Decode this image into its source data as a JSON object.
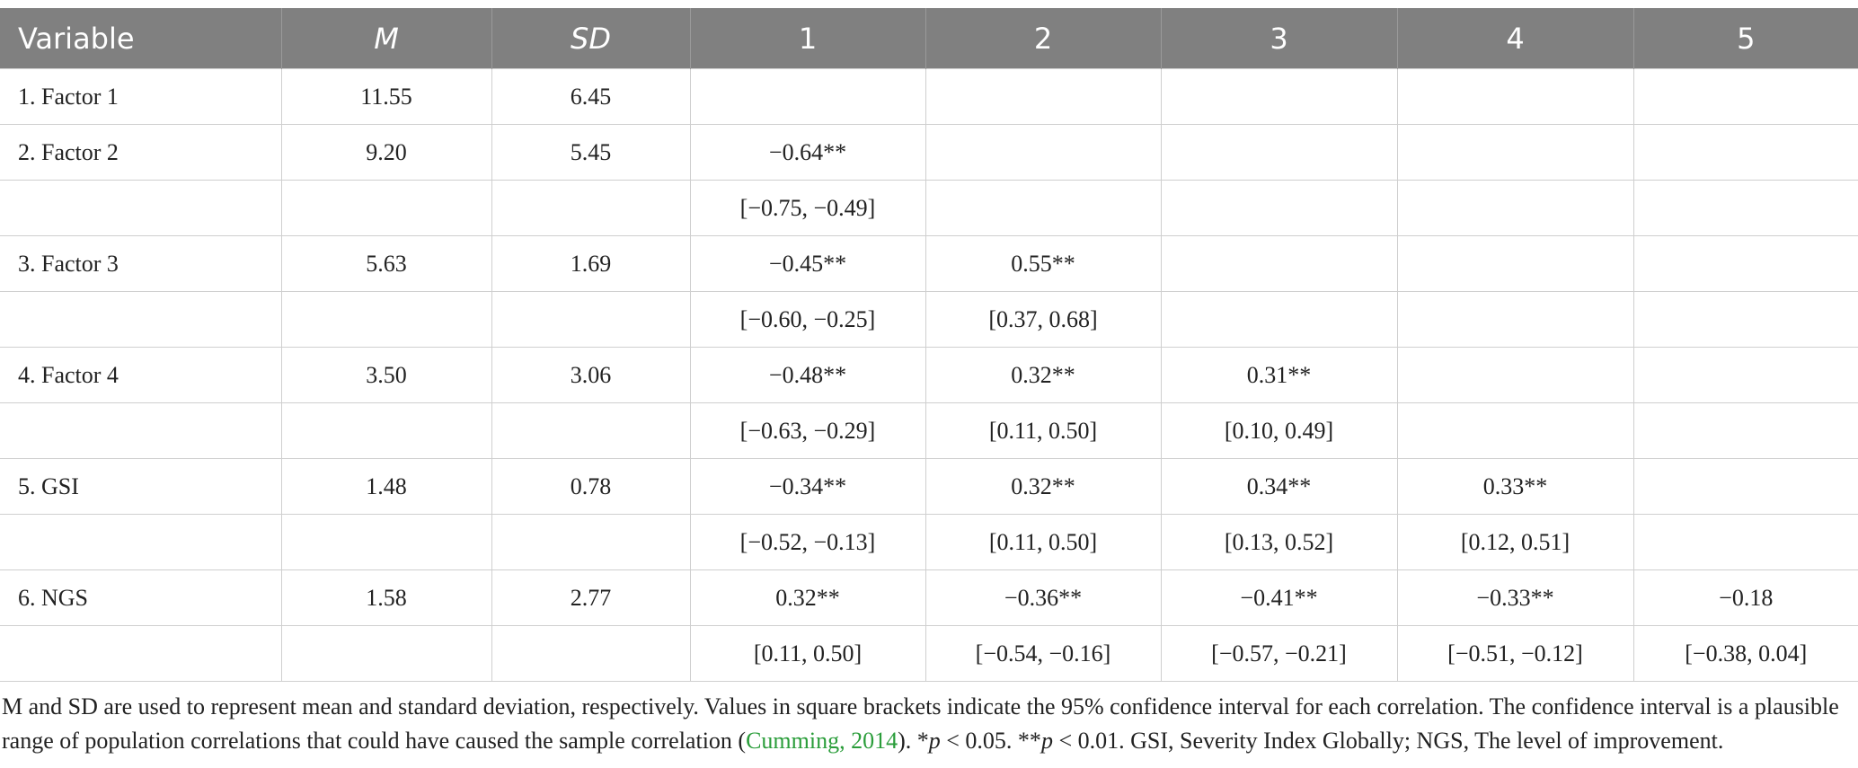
{
  "table": {
    "header": [
      "Variable",
      "M",
      "SD",
      "1",
      "2",
      "3",
      "4",
      "5"
    ],
    "rows": [
      {
        "label": "1. Factor 1",
        "m": "11.55",
        "sd": "6.45",
        "r": [],
        "ci": []
      },
      {
        "label": "2. Factor 2",
        "m": "9.20",
        "sd": "5.45",
        "r": [
          "−0.64**"
        ],
        "ci": [
          "[−0.75, −0.49]"
        ]
      },
      {
        "label": "3. Factor 3",
        "m": "5.63",
        "sd": "1.69",
        "r": [
          "−0.45**",
          "0.55**"
        ],
        "ci": [
          "[−0.60, −0.25]",
          "[0.37, 0.68]"
        ]
      },
      {
        "label": "4. Factor 4",
        "m": "3.50",
        "sd": "3.06",
        "r": [
          "−0.48**",
          "0.32**",
          "0.31**"
        ],
        "ci": [
          "[−0.63, −0.29]",
          "[0.11, 0.50]",
          "[0.10, 0.49]"
        ]
      },
      {
        "label": "5. GSI",
        "m": "1.48",
        "sd": "0.78",
        "r": [
          "−0.34**",
          "0.32**",
          "0.34**",
          "0.33**"
        ],
        "ci": [
          "[−0.52, −0.13]",
          "[0.11, 0.50]",
          "[0.13, 0.52]",
          "[0.12, 0.51]"
        ]
      },
      {
        "label": "6. NGS",
        "m": "1.58",
        "sd": "2.77",
        "r": [
          "0.32**",
          "−0.36**",
          "−0.41**",
          "−0.33**",
          "−0.18"
        ],
        "ci": [
          "[0.11, 0.50]",
          "[−0.54, −0.16]",
          "[−0.57, −0.21]",
          "[−0.51, −0.12]",
          "[−0.38, 0.04]"
        ]
      }
    ]
  },
  "note": [
    "M and SD are used to represent mean and standard deviation, respectively. Values in square brackets indicate the 95% confidence interval for each correlation. The confidence interval is a plausible range of population correlations that could have caused the sample correlation (",
    "Cumming, 2014",
    "). *",
    "p",
    " < 0.05. **",
    "p",
    " < 0.01. GSI, Severity Index Globally; NGS, The level of improvement."
  ]
}
